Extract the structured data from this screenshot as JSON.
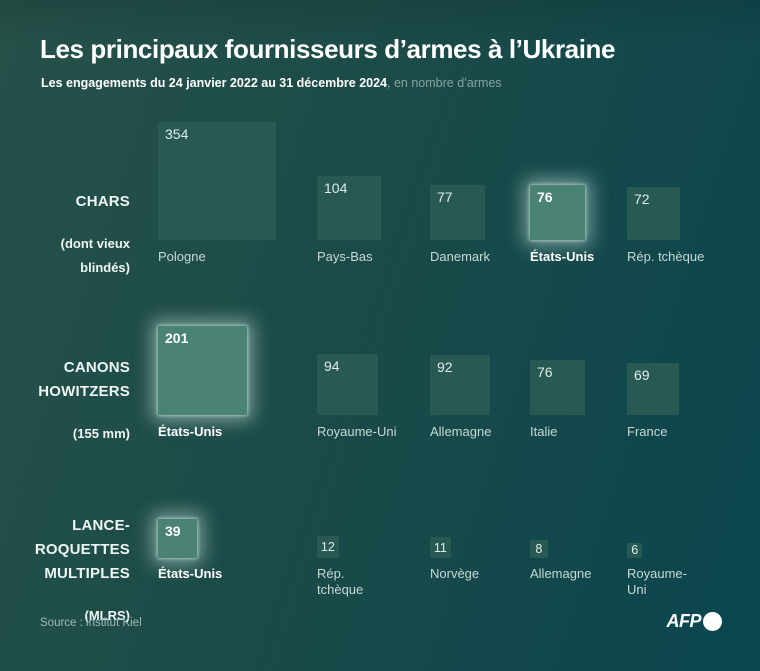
{
  "header": {
    "title": "Les principaux fournisseurs d’armes à l’Ukraine",
    "subtitle_bold": "Les engagements du 24 janvier 2022 au 31 décembre 2024",
    "subtitle_rest": ", en nombre d’armes"
  },
  "rows": [
    {
      "category": "CHARS",
      "subnote": "(dont vieux\nblindés)",
      "items": [
        {
          "country": "Pologne",
          "value": 354,
          "highlight": false
        },
        {
          "country": "Pays-Bas",
          "value": 104,
          "highlight": false
        },
        {
          "country": "Danemark",
          "value": 77,
          "highlight": false
        },
        {
          "country": "États-Unis",
          "value": 76,
          "highlight": true
        },
        {
          "country": "Rép. tchèque",
          "value": 72,
          "highlight": false
        }
      ]
    },
    {
      "category": "CANONS\nHOWITZERS",
      "subnote": "(155 mm)",
      "items": [
        {
          "country": "États-Unis",
          "value": 201,
          "highlight": true
        },
        {
          "country": "Royaume-Uni",
          "value": 94,
          "highlight": false
        },
        {
          "country": "Allemagne",
          "value": 92,
          "highlight": false
        },
        {
          "country": "Italie",
          "value": 76,
          "highlight": false
        },
        {
          "country": "France",
          "value": 69,
          "highlight": false
        }
      ]
    },
    {
      "category": "LANCE-\nROQUETTES\nMULTIPLES",
      "subnote": "(MLRS)",
      "items": [
        {
          "country": "États-Unis",
          "value": 39,
          "highlight": true
        },
        {
          "country": "Rép.\ntchèque",
          "value": 12,
          "highlight": false
        },
        {
          "country": "Norvège",
          "value": 11,
          "highlight": false
        },
        {
          "country": "Allemagne",
          "value": 8,
          "highlight": false
        },
        {
          "country": "Royaume-\nUni",
          "value": 6,
          "highlight": false
        }
      ]
    }
  ],
  "footer": {
    "source": "Source : institut Kiel",
    "logo_text": "AFP"
  },
  "colors": {
    "background_left": "#265149",
    "background_right": "#0a4550",
    "square": "#285a53",
    "square_highlight": "#4a8274",
    "title_text": "#ffffff",
    "subtitle_muted": "#84a5a1",
    "label_text": "#c6d9d5"
  },
  "chart_data": {
    "type": "bar",
    "variant": "proportional-squares",
    "title": "Les principaux fournisseurs d’armes à l’Ukraine",
    "subtitle": "Les engagements du 24 janvier 2022 au 31 décembre 2024, en nombre d’armes",
    "groups": [
      {
        "category": "CHARS (dont vieux blindés)",
        "labels": [
          "Pologne",
          "Pays-Bas",
          "Danemark",
          "États-Unis",
          "Rép. tchèque"
        ],
        "values": [
          354,
          104,
          77,
          76,
          72
        ],
        "highlighted_label": "États-Unis"
      },
      {
        "category": "CANONS HOWITZERS (155 mm)",
        "labels": [
          "États-Unis",
          "Royaume-Uni",
          "Allemagne",
          "Italie",
          "France"
        ],
        "values": [
          201,
          94,
          92,
          76,
          69
        ],
        "highlighted_label": "États-Unis"
      },
      {
        "category": "LANCE-ROQUETTES MULTIPLES (MLRS)",
        "labels": [
          "États-Unis",
          "Rép. tchèque",
          "Norvège",
          "Allemagne",
          "Royaume-Uni"
        ],
        "values": [
          39,
          12,
          11,
          8,
          6
        ],
        "highlighted_label": "États-Unis"
      }
    ],
    "source": "Source : institut Kiel"
  }
}
